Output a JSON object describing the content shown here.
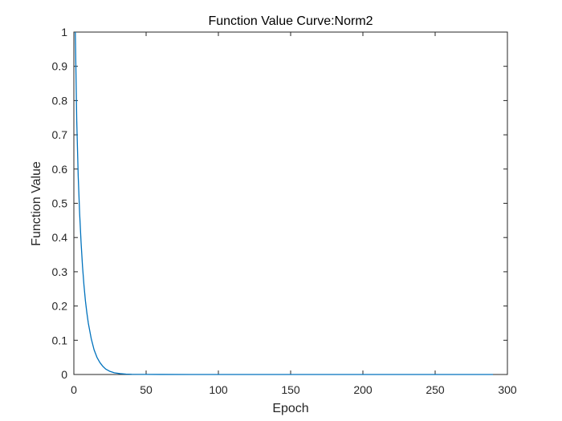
{
  "chart_data": {
    "type": "line",
    "title": "Function Value Curve:Norm2",
    "xlabel": "Epoch",
    "ylabel": "Function Value",
    "xlim": [
      0,
      300
    ],
    "ylim": [
      0,
      1
    ],
    "x_ticks": [
      0,
      50,
      100,
      150,
      200,
      250,
      300
    ],
    "y_ticks": [
      0,
      0.1,
      0.2,
      0.3,
      0.4,
      0.5,
      0.6,
      0.7,
      0.8,
      0.9,
      1
    ],
    "x_tick_labels": [
      "0",
      "50",
      "100",
      "150",
      "200",
      "250",
      "300"
    ],
    "y_tick_labels": [
      "0",
      "0.1",
      "0.2",
      "0.3",
      "0.4",
      "0.5",
      "0.6",
      "0.7",
      "0.8",
      "0.9",
      "1"
    ],
    "grid": false,
    "box": true,
    "line_color": "#0072BD",
    "series": [
      {
        "x": [
          1,
          2,
          3,
          4,
          5,
          6,
          7,
          8,
          9,
          10,
          12,
          14,
          16,
          18,
          20,
          22,
          25,
          28,
          32,
          36,
          40,
          50,
          60,
          80,
          100,
          150,
          200,
          250,
          290
        ],
        "y": [
          1.0,
          0.74,
          0.58,
          0.47,
          0.385,
          0.315,
          0.26,
          0.215,
          0.18,
          0.15,
          0.105,
          0.072,
          0.05,
          0.035,
          0.024,
          0.016,
          0.009,
          0.005,
          0.0025,
          0.0012,
          0.0006,
          0.0002,
          0.0001,
          0.0,
          0.0,
          0.0,
          0.0,
          0.0,
          0.0
        ]
      }
    ]
  }
}
